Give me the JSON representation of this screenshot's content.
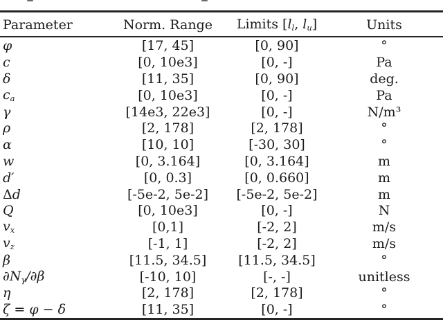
{
  "page": {
    "background": "#ffffff",
    "text_color": "#1b1b1b",
    "rule_color": "#242424"
  },
  "table": {
    "headers": [
      {
        "id": "parameter",
        "segments": [
          [
            "Parameter",
            "n"
          ]
        ]
      },
      {
        "id": "norm-range",
        "segments": [
          [
            "Norm. Range",
            "n"
          ]
        ]
      },
      {
        "id": "limits",
        "segments": [
          [
            "Limits [",
            "n"
          ],
          [
            "l",
            "i"
          ],
          [
            "l",
            "sub"
          ],
          [
            ", ",
            "n"
          ],
          [
            "l",
            "i"
          ],
          [
            "u",
            "sub"
          ],
          [
            "]",
            "n"
          ]
        ]
      },
      {
        "id": "units",
        "segments": [
          [
            "Units",
            "n"
          ]
        ]
      }
    ],
    "rows": [
      {
        "param": [
          [
            "φ",
            "i"
          ]
        ],
        "norm": "[17, 45]",
        "limits": "[0, 90]",
        "units": "°"
      },
      {
        "param": [
          [
            "c",
            "i"
          ]
        ],
        "norm": "[0, 10e3]",
        "limits": "[0, -]",
        "units": "Pa"
      },
      {
        "param": [
          [
            "δ",
            "i"
          ]
        ],
        "norm": "[11, 35]",
        "limits": "[0, 90]",
        "units": "deg."
      },
      {
        "param": [
          [
            "c",
            "i"
          ],
          [
            "a",
            "sub"
          ]
        ],
        "norm": "[0, 10e3]",
        "limits": "[0, -]",
        "units": "Pa"
      },
      {
        "param": [
          [
            "γ",
            "i"
          ]
        ],
        "norm": "[14e3, 22e3]",
        "limits": "[0, -]",
        "units": "N/m³"
      },
      {
        "param": [
          [
            "ρ",
            "i"
          ]
        ],
        "norm": "[2, 178]",
        "limits": "[2, 178]",
        "units": "°"
      },
      {
        "param": [
          [
            "α",
            "i"
          ]
        ],
        "norm": "[10, 10]",
        "limits": "[-30, 30]",
        "units": "°"
      },
      {
        "param": [
          [
            "w",
            "i"
          ]
        ],
        "norm": "[0, 3.164]",
        "limits": "[0, 3.164]",
        "units": "m"
      },
      {
        "param": [
          [
            "d′",
            "i"
          ]
        ],
        "norm": "[0, 0.3]",
        "limits": "[0, 0.660]",
        "units": "m"
      },
      {
        "param": [
          [
            "Δ",
            "n"
          ],
          [
            "d",
            "i"
          ]
        ],
        "norm": "[-5e-2, 5e-2]",
        "limits": "[-5e-2, 5e-2]",
        "units": "m"
      },
      {
        "param": [
          [
            "Q",
            "i"
          ]
        ],
        "norm": "[0, 10e3]",
        "limits": "[0, -]",
        "units": "N"
      },
      {
        "param": [
          [
            "v",
            "i"
          ],
          [
            "x",
            "sub"
          ]
        ],
        "norm": "[0,1]",
        "limits": "[-2, 2]",
        "units": "m/s"
      },
      {
        "param": [
          [
            "v",
            "i"
          ],
          [
            "z",
            "sub"
          ]
        ],
        "norm": "[-1, 1]",
        "limits": "[-2, 2]",
        "units": "m/s"
      },
      {
        "param": [
          [
            "β",
            "i"
          ]
        ],
        "norm": "[11.5, 34.5]",
        "limits": "[11.5, 34.5]",
        "units": "°"
      },
      {
        "param": [
          [
            "∂N",
            "i"
          ],
          [
            "γ",
            "sub"
          ],
          [
            "/∂β",
            "i"
          ]
        ],
        "norm": "[-10, 10]",
        "limits": "[-, -]",
        "units": "unitless"
      },
      {
        "param": [
          [
            "η",
            "i"
          ]
        ],
        "norm": "[2, 178]",
        "limits": "[2, 178]",
        "units": "°"
      },
      {
        "param": [
          [
            "ζ = φ − δ",
            "i"
          ]
        ],
        "norm": "[11, 35]",
        "limits": "[0, -]",
        "units": "°"
      }
    ]
  }
}
